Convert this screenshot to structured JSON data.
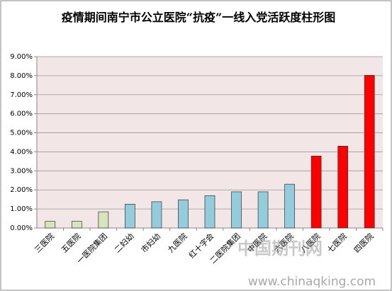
{
  "chart_data": {
    "type": "bar",
    "title": "疫情期间南宁市公立医院“抗疫”一线入党活跃度柱形图",
    "categories": [
      "三医院",
      "五医院",
      "一医院集团",
      "二妇幼",
      "市妇幼",
      "九医院",
      "红十字会",
      "二医院集团",
      "中医院",
      "六医院",
      "八医院",
      "七医院",
      "四医院"
    ],
    "values": [
      0.35,
      0.35,
      0.85,
      1.25,
      1.38,
      1.48,
      1.7,
      1.9,
      1.9,
      2.3,
      3.78,
      4.3,
      8.02
    ],
    "colors": [
      "#d7e4bd",
      "#d7e4bd",
      "#d7e4bd",
      "#93cddd",
      "#93cddd",
      "#93cddd",
      "#93cddd",
      "#93cddd",
      "#93cddd",
      "#93cddd",
      "#ff0000",
      "#ff0000",
      "#ff0000"
    ],
    "ylim": [
      0,
      9
    ],
    "yticks": [
      {
        "value": 0,
        "label": "0.00%"
      },
      {
        "value": 1,
        "label": "1.00%"
      },
      {
        "value": 2,
        "label": "2.00%"
      },
      {
        "value": 3,
        "label": "3.00%"
      },
      {
        "value": 4,
        "label": "4.00%"
      },
      {
        "value": 5,
        "label": "5.00%"
      },
      {
        "value": 6,
        "label": "6.00%"
      },
      {
        "value": 7,
        "label": "7.00%"
      },
      {
        "value": 8,
        "label": "8.00%"
      },
      {
        "value": 9,
        "label": "9.00%"
      }
    ],
    "grid": true,
    "watermark": "www.chinaqking.com",
    "watermark_logo": "中国期刊网"
  }
}
